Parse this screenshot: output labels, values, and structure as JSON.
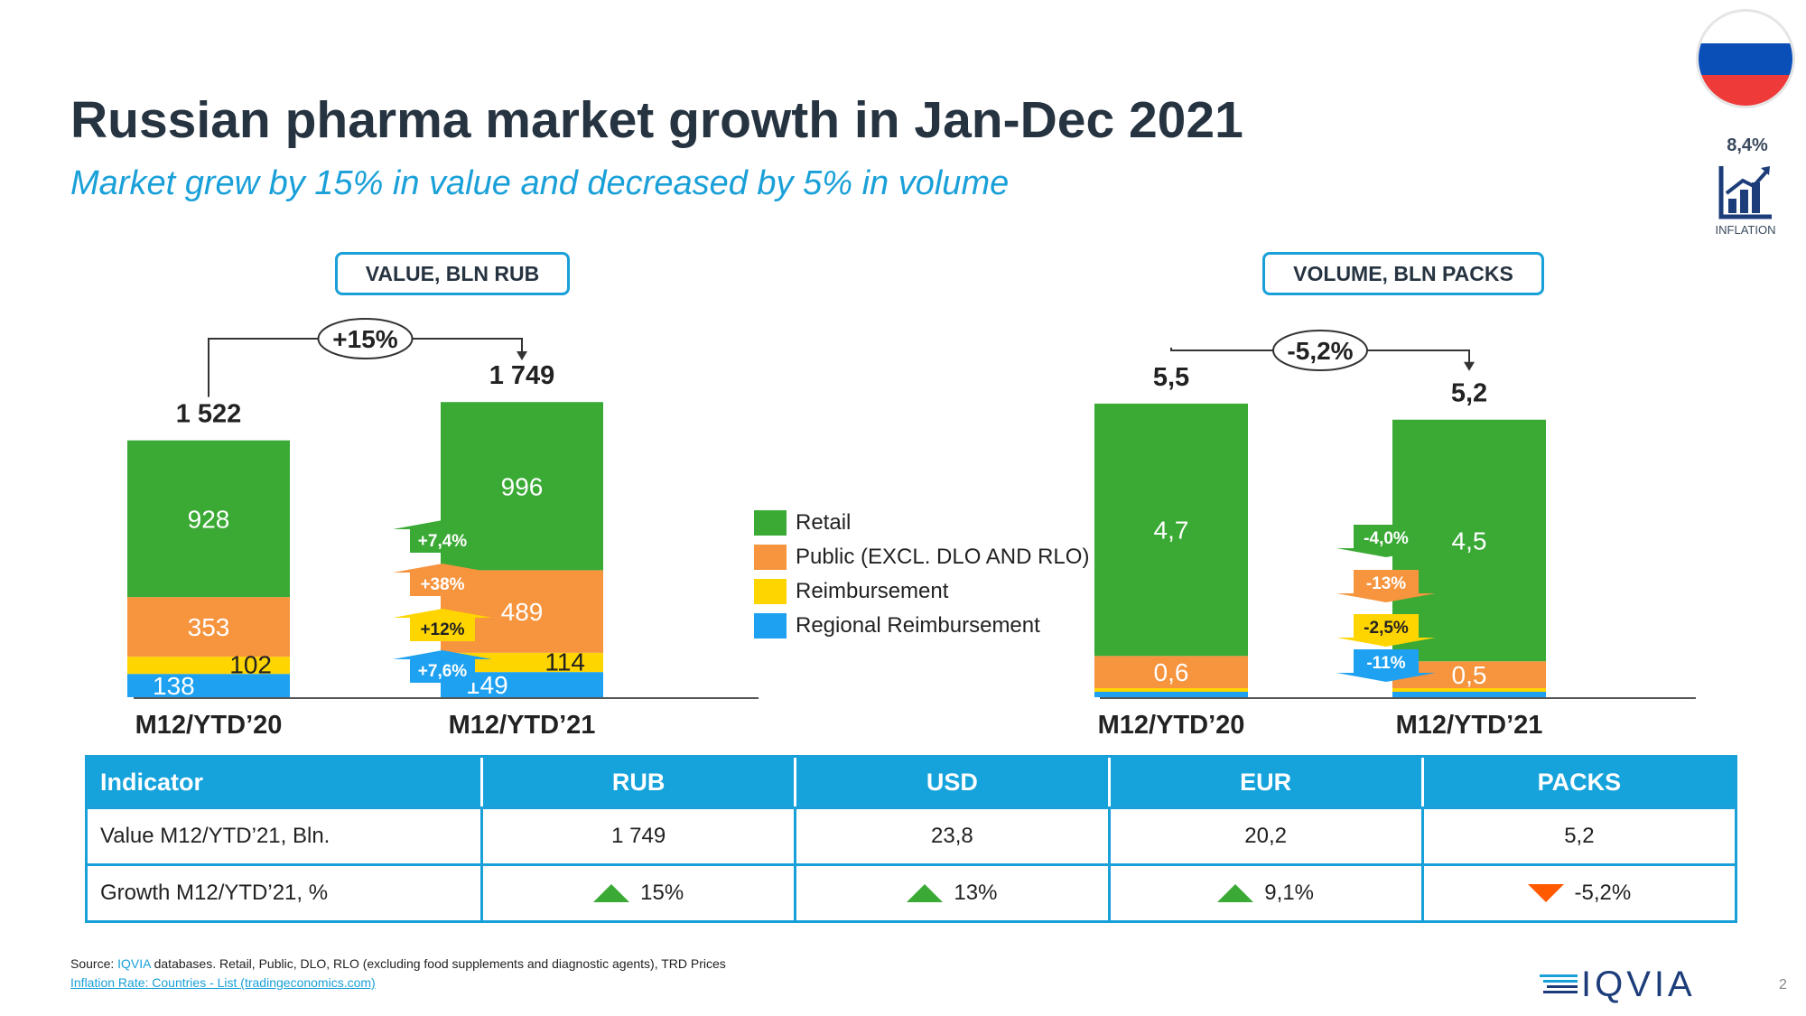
{
  "header": {
    "title": "Russian pharma market growth in Jan-Dec 2021",
    "subtitle": "Market grew by 15% in value and decreased by 5% in volume"
  },
  "inflation": {
    "value": "8,4%",
    "label": "INFLATION",
    "icon": "bar-chart-trend-icon"
  },
  "colors": {
    "retail": "#3aaa35",
    "public": "#f7943e",
    "reimbursement": "#ffd500",
    "regional": "#1ea1f0",
    "accent": "#1aa0d8"
  },
  "legend": {
    "items": [
      {
        "label": "Retail",
        "color": "#3aaa35"
      },
      {
        "label": "Public (EXCL. DLO AND RLO)",
        "color": "#f7943e"
      },
      {
        "label": "Reimbursement",
        "color": "#ffd500"
      },
      {
        "label": "Regional Reimbursement",
        "color": "#1ea1f0"
      }
    ]
  },
  "chart_data": [
    {
      "type": "bar",
      "title": "VALUE, BLN RUB",
      "stacked": true,
      "categories": [
        "M12/YTD’20",
        "M12/YTD’21"
      ],
      "totals": [
        "1 522",
        "1 749"
      ],
      "total_values": [
        1522,
        1749
      ],
      "series": [
        {
          "name": "Retail",
          "values": [
            928,
            996
          ],
          "labels": [
            "928",
            "996"
          ],
          "growth": "+7,4%"
        },
        {
          "name": "Public (EXCL. DLO AND RLO)",
          "values": [
            353,
            489
          ],
          "labels": [
            "353",
            "489"
          ],
          "growth": "+38%"
        },
        {
          "name": "Reimbursement",
          "values": [
            102,
            114
          ],
          "labels": [
            "102",
            "114"
          ],
          "growth": "+12%"
        },
        {
          "name": "Regional Reimbursement",
          "values": [
            138,
            149
          ],
          "labels": [
            "138",
            "149"
          ],
          "growth": "+7,6%"
        }
      ],
      "total_growth": "+15%",
      "ylim": [
        0,
        1749
      ]
    },
    {
      "type": "bar",
      "title": "VOLUME, BLN PACKS",
      "stacked": true,
      "categories": [
        "M12/YTD’20",
        "M12/YTD’21"
      ],
      "totals": [
        "5,5",
        "5,2"
      ],
      "total_values": [
        5.5,
        5.2
      ],
      "series": [
        {
          "name": "Retail",
          "values": [
            4.7,
            4.5
          ],
          "labels": [
            "4,7",
            "4,5"
          ],
          "growth": "-4,0%"
        },
        {
          "name": "Public (EXCL. DLO AND RLO)",
          "values": [
            0.6,
            0.5
          ],
          "labels": [
            "0,6",
            "0,5"
          ],
          "growth": "-13%"
        },
        {
          "name": "Reimbursement",
          "values": [
            0.05,
            0.05
          ],
          "labels": [
            "",
            ""
          ],
          "growth": "-2,5%"
        },
        {
          "name": "Regional Reimbursement",
          "values": [
            0.1,
            0.1
          ],
          "labels": [
            "",
            ""
          ],
          "growth": "-11%"
        }
      ],
      "total_growth": "-5,2%",
      "ylim": [
        0,
        5.5
      ]
    }
  ],
  "table": {
    "headers": [
      "Indicator",
      "RUB",
      "USD",
      "EUR",
      "PACKS"
    ],
    "rows": [
      {
        "label": "Value  M12/YTD’21, Bln.",
        "cells": [
          "1 749",
          "23,8",
          "20,2",
          "5,2"
        ]
      },
      {
        "label": "Growth  M12/YTD’21, %",
        "cells": [
          "15%",
          "13%",
          "9,1%",
          "-5,2%"
        ],
        "directions": [
          "up",
          "up",
          "up",
          "down"
        ]
      }
    ]
  },
  "footer": {
    "source_prefix": "Source: ",
    "source_brand": "IQVIA",
    "source_rest": " databases. Retail, Public, DLO, RLO (excluding food supplements and diagnostic agents), TRD Prices",
    "link": "Inflation Rate: Countries - List (tradingeconomics.com)",
    "logo": "IQVIA",
    "page_number": "2"
  }
}
